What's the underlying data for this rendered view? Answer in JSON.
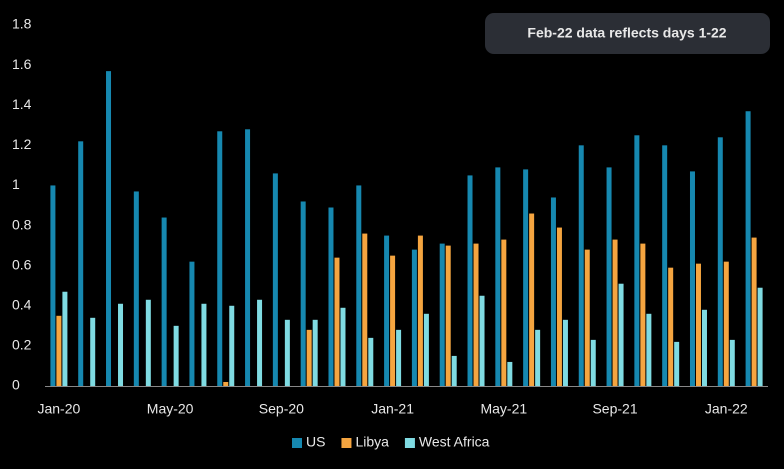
{
  "chart_data": {
    "type": "bar",
    "annotation": "Feb-22 data reflects days 1-22",
    "categories": [
      "Jan-20",
      null,
      null,
      null,
      "May-20",
      null,
      null,
      null,
      "Sep-20",
      null,
      null,
      null,
      "Jan-21",
      null,
      null,
      null,
      "May-21",
      null,
      null,
      null,
      "Sep-21",
      null,
      null,
      null,
      "Jan-22",
      null
    ],
    "series": [
      {
        "name": "US",
        "color": "#1688b0",
        "values": [
          1.0,
          1.22,
          1.57,
          0.97,
          0.84,
          0.62,
          1.27,
          1.28,
          1.06,
          0.92,
          0.89,
          1.0,
          0.75,
          0.68,
          0.71,
          1.05,
          1.09,
          1.08,
          0.94,
          1.2,
          1.09,
          1.25,
          1.2,
          1.07,
          1.24,
          1.37
        ]
      },
      {
        "name": "Libya",
        "color": "#f5a540",
        "values": [
          0.35,
          null,
          null,
          null,
          null,
          null,
          0.02,
          null,
          null,
          0.28,
          0.64,
          0.76,
          0.65,
          0.75,
          0.7,
          0.71,
          0.73,
          0.86,
          0.79,
          0.68,
          0.73,
          0.71,
          0.59,
          0.61,
          0.62,
          0.74
        ]
      },
      {
        "name": "West Africa",
        "color": "#7fdbe2",
        "values": [
          0.47,
          0.34,
          0.41,
          0.43,
          0.3,
          0.41,
          0.4,
          0.43,
          0.33,
          0.33,
          0.39,
          0.24,
          0.28,
          0.36,
          0.15,
          0.45,
          0.12,
          0.28,
          0.33,
          0.23,
          0.51,
          0.36,
          0.22,
          0.38,
          0.23,
          0.49
        ]
      }
    ],
    "ylim": [
      0,
      1.8
    ],
    "yticks": [
      0,
      0.2,
      0.4,
      0.6,
      0.8,
      1,
      1.2,
      1.4,
      1.6,
      1.8
    ],
    "grid": false,
    "legend": "bottom"
  }
}
